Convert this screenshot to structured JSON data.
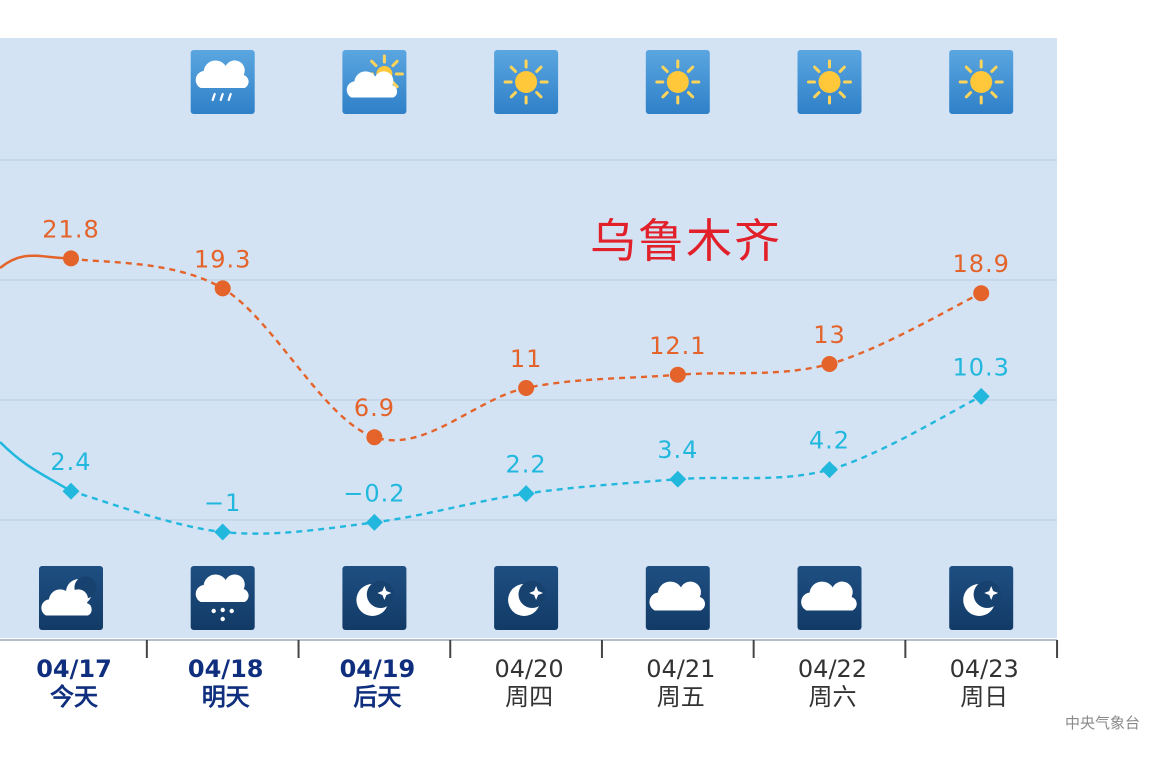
{
  "chart_data": {
    "type": "line",
    "title": "乌鲁木齐",
    "categories": [
      "04/17",
      "04/18",
      "04/19",
      "04/20",
      "04/21",
      "04/22",
      "04/23"
    ],
    "day_names": [
      "今天",
      "明天",
      "后天",
      "周四",
      "周五",
      "周六",
      "周日"
    ],
    "highlighted_days": [
      0,
      1,
      2
    ],
    "series": [
      {
        "values": [
          21.8,
          19.3,
          6.9,
          11,
          12.1,
          13,
          18.9
        ],
        "labels": [
          "21.8",
          "19.3",
          "6.9",
          "11",
          "12.1",
          "13",
          "18.9"
        ],
        "color": "#e4632a"
      },
      {
        "values": [
          2.4,
          -1,
          -0.2,
          2.2,
          3.4,
          4.2,
          10.3
        ],
        "labels": [
          "2.4",
          "−1",
          "−0.2",
          "2.2",
          "3.4",
          "4.2",
          "10.3"
        ],
        "color": "#22b8de"
      }
    ],
    "left_edge_values": {
      "high": 21,
      "low": 6.5
    },
    "day_icons": [
      "",
      "cloud-rain-icon",
      "sun-cloud-icon",
      "sun-icon",
      "sun-icon",
      "sun-icon",
      "sun-icon"
    ],
    "night_icons": [
      "moon-cloud-icon",
      "cloud-snow-icon",
      "moon-star-icon",
      "moon-star-icon",
      "cloud-icon",
      "cloud-icon",
      "moon-star-icon"
    ],
    "ylim": [
      -10,
      40
    ],
    "grid": true,
    "colors": {
      "panel": "#d3e3f4",
      "grid": "#b7cbe2",
      "title": "#e2202a",
      "day_tile": "#3f8fd2",
      "night_tile": "#17426f",
      "date_bold": "#0f2f7e",
      "date_normal": "#333333"
    }
  },
  "source": "中央气象台"
}
